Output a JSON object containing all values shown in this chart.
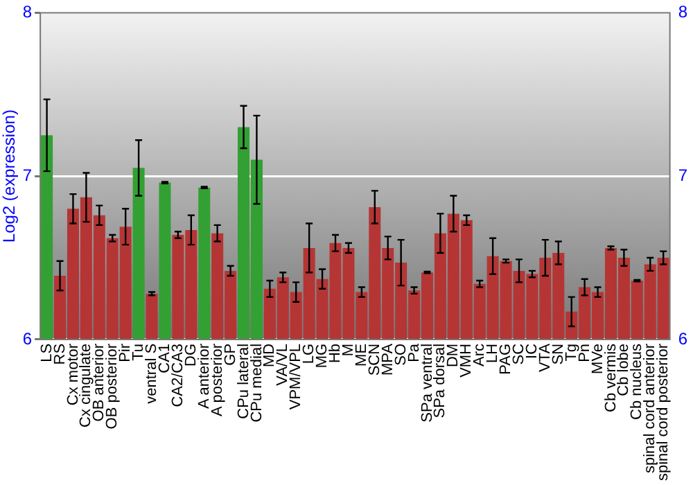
{
  "chart_data": {
    "type": "bar",
    "ylabel": "Log2 (expression)",
    "categories": [
      "LS",
      "RS",
      "Cx motor",
      "Cx cingulate",
      "OB anterior",
      "OB posterior",
      "Pir",
      "Tu",
      "ventral S",
      "CA1",
      "CA2/CA3",
      "DG",
      "A anterior",
      "A posterior",
      "GP",
      "CPu lateral",
      "CPu medial",
      "MD",
      "VA/VL",
      "VPM/VPL",
      "LG",
      "MG",
      "Hb",
      "M",
      "ME",
      "SCN",
      "MPA",
      "SO",
      "Pa",
      "SPa ventral",
      "SPa dorsal",
      "DM",
      "VMH",
      "Arc",
      "LH",
      "PAG",
      "SC",
      "IC",
      "VTA",
      "SN",
      "Tg",
      "Pn",
      "MVe",
      "Cb vermis",
      "Cb lobe",
      "Cb nucleus",
      "spinal cord anterior",
      "spinal cord posterior"
    ],
    "values": [
      7.25,
      6.39,
      6.8,
      6.87,
      6.76,
      6.62,
      6.69,
      7.05,
      6.28,
      6.96,
      6.64,
      6.67,
      6.93,
      6.65,
      6.42,
      7.3,
      7.1,
      6.31,
      6.38,
      6.29,
      6.56,
      6.37,
      6.59,
      6.56,
      6.29,
      6.81,
      6.56,
      6.47,
      6.3,
      6.41,
      6.65,
      6.77,
      6.73,
      6.34,
      6.51,
      6.48,
      6.42,
      6.4,
      6.5,
      6.53,
      6.17,
      6.32,
      6.29,
      6.56,
      6.5,
      6.36,
      6.46,
      6.5
    ],
    "errors": [
      0.22,
      0.09,
      0.09,
      0.15,
      0.06,
      0.02,
      0.11,
      0.17,
      0.01,
      0.005,
      0.02,
      0.09,
      0.005,
      0.05,
      0.03,
      0.13,
      0.27,
      0.05,
      0.03,
      0.06,
      0.15,
      0.06,
      0.05,
      0.03,
      0.03,
      0.1,
      0.07,
      0.14,
      0.02,
      0.005,
      0.12,
      0.11,
      0.03,
      0.02,
      0.11,
      0.01,
      0.07,
      0.02,
      0.11,
      0.07,
      0.09,
      0.05,
      0.03,
      0.01,
      0.05,
      0.005,
      0.04,
      0.04
    ],
    "colors": [
      "#33a033",
      "#b53535",
      "#b53535",
      "#b53535",
      "#b53535",
      "#b53535",
      "#b53535",
      "#33a033",
      "#b53535",
      "#33a033",
      "#b53535",
      "#b53535",
      "#33a033",
      "#b53535",
      "#b53535",
      "#33a033",
      "#33a033",
      "#b53535",
      "#b53535",
      "#b53535",
      "#b53535",
      "#b53535",
      "#b53535",
      "#b53535",
      "#b53535",
      "#b53535",
      "#b53535",
      "#b53535",
      "#b53535",
      "#b53535",
      "#b53535",
      "#b53535",
      "#b53535",
      "#b53535",
      "#b53535",
      "#b53535",
      "#b53535",
      "#b53535",
      "#b53535",
      "#b53535",
      "#b53535",
      "#b53535",
      "#b53535",
      "#b53535",
      "#b53535",
      "#b53535",
      "#b53535",
      "#b53535"
    ],
    "ylim": [
      6,
      8
    ],
    "yticks": [
      6,
      7,
      8
    ],
    "y2lim": [
      6,
      8
    ],
    "y2ticks": [
      6,
      7,
      8
    ],
    "grid": "y",
    "legend": false
  }
}
